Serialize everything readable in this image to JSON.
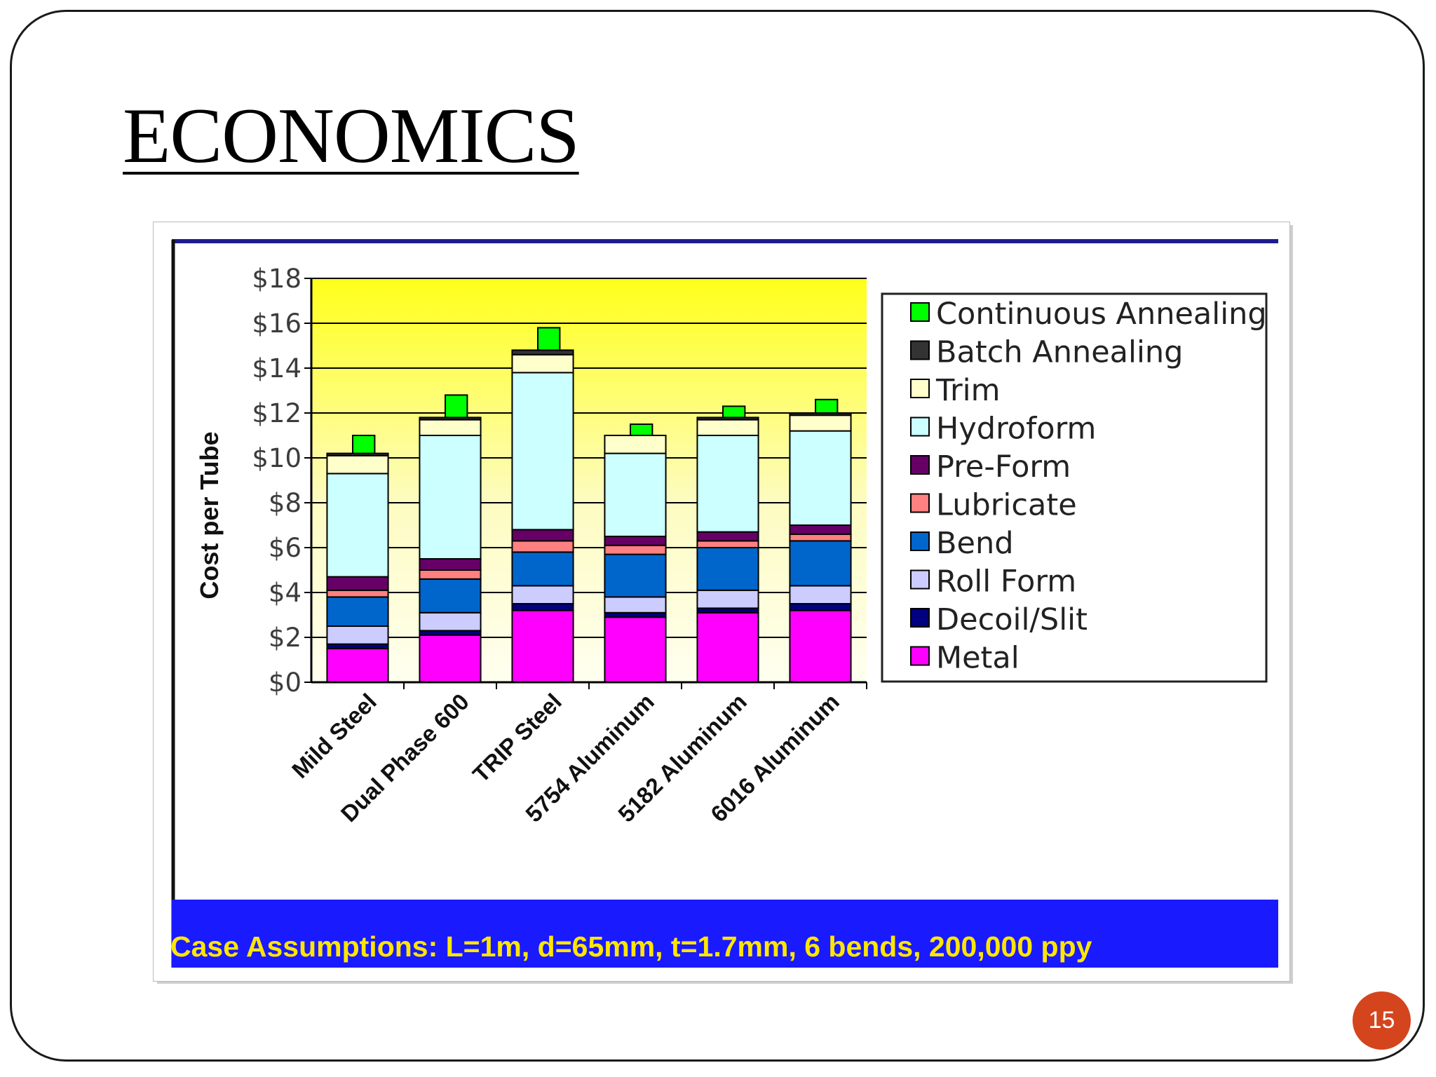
{
  "slide": {
    "title": "ECONOMICS",
    "page_number": "15"
  },
  "chart_data": {
    "type": "bar",
    "stacked": true,
    "title": "",
    "xlabel": "",
    "ylabel": "Cost per Tube",
    "ylim": [
      0,
      18
    ],
    "yticks": [
      "$0",
      "$2",
      "$4",
      "$6",
      "$8",
      "$10",
      "$12",
      "$14",
      "$16",
      "$18"
    ],
    "grid": true,
    "legend_position": "right",
    "categories": [
      "Mild Steel",
      "Dual Phase 600",
      "TRIP Steel",
      "5754 Aluminum",
      "5182 Aluminum",
      "6016 Aluminum"
    ],
    "series": [
      {
        "name": "Metal",
        "color": "#ff00ff",
        "values": [
          1.5,
          2.1,
          3.2,
          2.9,
          3.1,
          3.2
        ]
      },
      {
        "name": "Decoil/Slit",
        "color": "#000080",
        "values": [
          0.2,
          0.2,
          0.3,
          0.2,
          0.2,
          0.3
        ]
      },
      {
        "name": "Roll Form",
        "color": "#ccccff",
        "values": [
          0.8,
          0.8,
          0.8,
          0.7,
          0.8,
          0.8
        ]
      },
      {
        "name": "Bend",
        "color": "#0066cc",
        "values": [
          1.3,
          1.5,
          1.5,
          1.9,
          1.9,
          2.0
        ]
      },
      {
        "name": "Lubricate",
        "color": "#ff8080",
        "values": [
          0.3,
          0.4,
          0.5,
          0.4,
          0.3,
          0.3
        ]
      },
      {
        "name": "Pre-Form",
        "color": "#660066",
        "values": [
          0.6,
          0.5,
          0.5,
          0.4,
          0.4,
          0.4
        ]
      },
      {
        "name": "Hydroform",
        "color": "#ccffff",
        "values": [
          4.6,
          5.5,
          7.0,
          3.7,
          4.3,
          4.2
        ]
      },
      {
        "name": "Trim",
        "color": "#ffffcc",
        "values": [
          0.8,
          0.7,
          0.8,
          0.8,
          0.7,
          0.7
        ]
      },
      {
        "name": "Batch Annealing",
        "color": "#333333",
        "values": [
          0.1,
          0.1,
          0.2,
          0.0,
          0.1,
          0.1
        ]
      },
      {
        "name": "Continuous Annealing",
        "color": "#00ff00",
        "values": [
          0.8,
          1.0,
          1.0,
          0.5,
          0.5,
          0.6
        ]
      }
    ],
    "footer": "Case Assumptions:  L=1m, d=65mm, t=1.7mm, 6 bends, 200,000 ppy"
  }
}
